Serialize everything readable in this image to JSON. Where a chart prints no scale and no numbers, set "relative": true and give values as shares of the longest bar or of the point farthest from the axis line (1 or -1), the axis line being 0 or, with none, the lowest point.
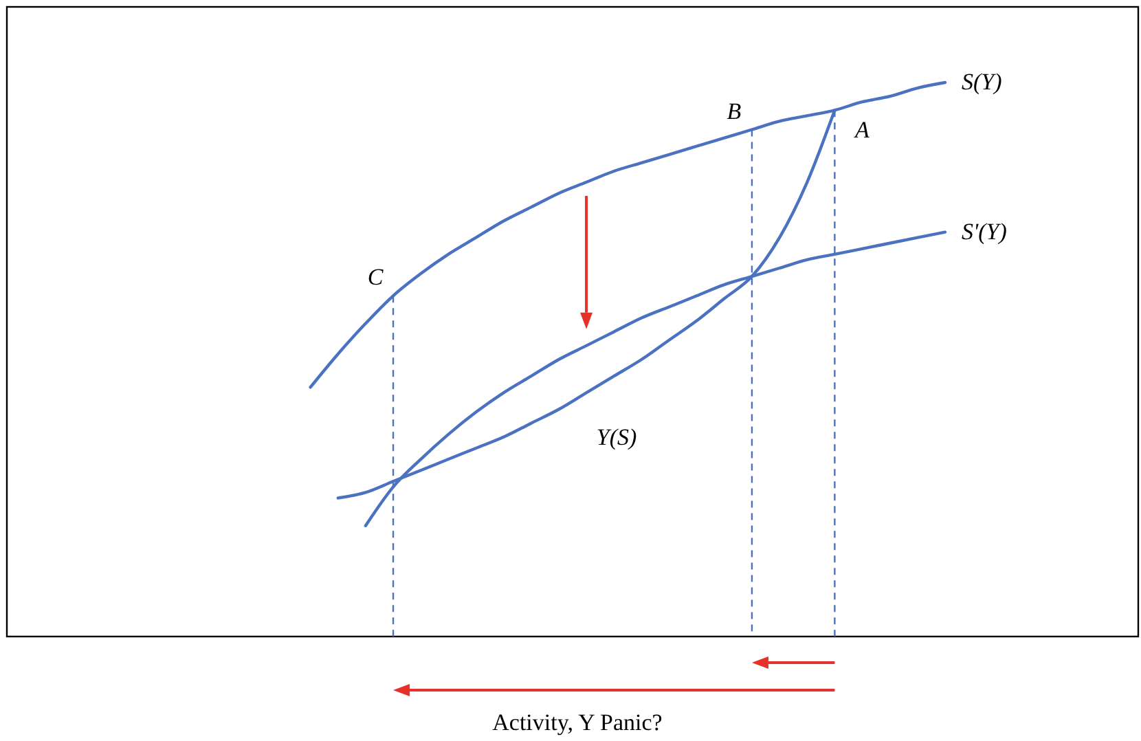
{
  "chart_data": {
    "type": "line",
    "relative": true,
    "xlabel": "Activity, Y Panic?",
    "marker": "none",
    "annotations": [
      "C",
      "B",
      "A"
    ],
    "categories": [
      null,
      null,
      null,
      null,
      null,
      null,
      null,
      null,
      null,
      null,
      null,
      null,
      null,
      null,
      null,
      null,
      null,
      null,
      null,
      null,
      null,
      null,
      null,
      null,
      null,
      null,
      null,
      null,
      null,
      null,
      null,
      null,
      null,
      null,
      null,
      null,
      null,
      null,
      null,
      null,
      null,
      null
    ],
    "series": [
      {
        "name": "S(Y)",
        "color": "#4a72c0",
        "values": [
          null,
          null,
          null,
          null,
          null,
          null,
          null,
          null,
          null,
          null,
          null,
          0.45,
          0.51,
          0.565,
          0.615,
          0.655,
          0.69,
          0.72,
          0.75,
          0.775,
          0.8,
          0.82,
          0.84,
          0.855,
          0.87,
          0.885,
          0.9,
          0.915,
          0.93,
          0.94,
          0.95,
          0.965,
          0.975,
          0.99,
          1,
          null,
          null,
          null,
          null,
          null,
          null,
          null
        ]
      },
      {
        "name": "S'(Y)",
        "color": "#4a72c0",
        "values": [
          null,
          null,
          null,
          null,
          null,
          null,
          null,
          null,
          null,
          null,
          null,
          null,
          null,
          0.2,
          0.27,
          0.32,
          0.365,
          0.405,
          0.44,
          0.47,
          0.5,
          0.525,
          0.55,
          0.575,
          0.595,
          0.615,
          0.635,
          0.65,
          0.665,
          0.68,
          0.69,
          0.7,
          0.71,
          0.72,
          0.73,
          null,
          null,
          null,
          null,
          null,
          null,
          null
        ]
      },
      {
        "name": "Y(S)",
        "color": "#4a72c0",
        "values": [
          null,
          null,
          null,
          null,
          null,
          null,
          null,
          null,
          null,
          null,
          null,
          null,
          0.25,
          0.26,
          0.28,
          0.3,
          0.32,
          0.34,
          0.36,
          0.385,
          0.41,
          0.44,
          0.47,
          0.5,
          0.535,
          0.57,
          0.61,
          0.65,
          0.72,
          0.82,
          0.95,
          null,
          null,
          null,
          null,
          null,
          null,
          null,
          null,
          null,
          null,
          null
        ]
      }
    ]
  }
}
